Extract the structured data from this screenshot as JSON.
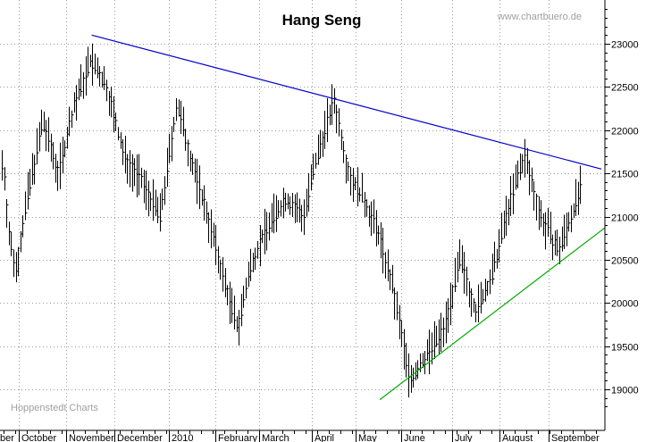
{
  "chart_data": {
    "type": "bar",
    "subtype": "ohlc",
    "title": "Hang Seng",
    "watermark_top": "www.chartbuero.de",
    "watermark_bottom": "Hoppenstedt Charts",
    "ylim": [
      18800,
      23450
    ],
    "y_ticks": [
      19000,
      19500,
      20000,
      20500,
      21000,
      21500,
      22000,
      22500,
      23000
    ],
    "y_axis_position": "right",
    "grid": true,
    "x_labels": [
      "ber",
      "October",
      "November",
      "December",
      "2010",
      "February",
      "March",
      "April",
      "May",
      "June",
      "July",
      "August",
      "September"
    ],
    "colors": {
      "price_bars": "#000000",
      "resistance_line": "#0000cc",
      "support_line": "#00aa00",
      "grid": "#9a9a9a"
    },
    "anchors": [
      [
        "ber",
        21600
      ],
      [
        "ber",
        20700
      ],
      [
        "ber",
        20400
      ],
      [
        "October",
        21200
      ],
      [
        "October",
        22100
      ],
      [
        "October",
        21500
      ],
      [
        "November",
        22300
      ],
      [
        "November",
        22800
      ],
      [
        "November",
        22500
      ],
      [
        "December",
        21700
      ],
      [
        "December",
        21400
      ],
      [
        "December",
        21000
      ],
      [
        "2010",
        22300
      ],
      [
        "2010",
        21600
      ],
      [
        "2010",
        21000
      ],
      [
        "February",
        20300
      ],
      [
        "February",
        19700
      ],
      [
        "February",
        20500
      ],
      [
        "March",
        20900
      ],
      [
        "March",
        21200
      ],
      [
        "March",
        21000
      ],
      [
        "April",
        21800
      ],
      [
        "April",
        22350
      ],
      [
        "April",
        21500
      ],
      [
        "May",
        21200
      ],
      [
        "May",
        20800
      ],
      [
        "May",
        20100
      ],
      [
        "June",
        19100
      ],
      [
        "June",
        19400
      ],
      [
        "June",
        19700
      ],
      [
        "July",
        20500
      ],
      [
        "July",
        19900
      ],
      [
        "July",
        20300
      ],
      [
        "August",
        21100
      ],
      [
        "August",
        21700
      ],
      [
        "August",
        21000
      ],
      [
        "September",
        20600
      ],
      [
        "September",
        21200
      ],
      [
        "September",
        21800
      ]
    ],
    "trend_lines": [
      {
        "name": "resistance",
        "from": [
          "November",
          23100
        ],
        "to": [
          "September",
          21550
        ]
      },
      {
        "name": "support",
        "from": [
          "May",
          18880
        ],
        "to": [
          "September",
          20870
        ]
      }
    ]
  }
}
